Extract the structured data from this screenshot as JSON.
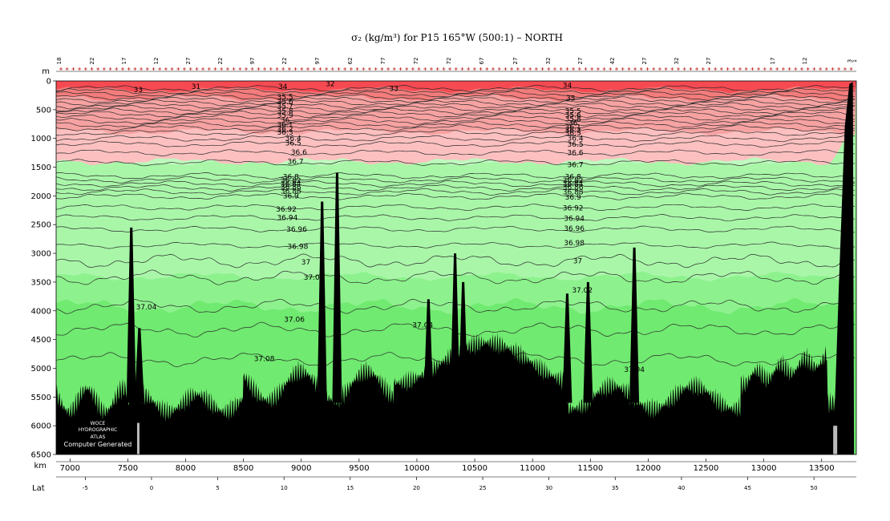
{
  "chart_data": {
    "type": "heatmap",
    "title": "σ₂ (kg/m³) for P15 165°W (500:1) – NORTH",
    "depth_axis": {
      "label": "m",
      "ticks": [
        0,
        500,
        1000,
        1500,
        2000,
        2500,
        3000,
        3500,
        4000,
        4500,
        5000,
        5500,
        6000,
        6500
      ],
      "range": [
        0,
        6500
      ],
      "inverted": true
    },
    "km_axis": {
      "label": "km",
      "ticks": [
        7000,
        7500,
        8000,
        8500,
        9000,
        9500,
        10000,
        10500,
        11000,
        11500,
        12000,
        12500,
        13000,
        13500
      ],
      "range": [
        6880,
        13800
      ]
    },
    "lat_axis": {
      "label": "Lat",
      "ticks": [
        -5,
        0,
        5,
        10,
        15,
        20,
        25,
        30,
        35,
        40,
        45,
        50
      ],
      "range": [
        -7.2,
        53.2
      ]
    },
    "station_labels": [
      "18",
      "22",
      "17",
      "12",
      "27",
      "22",
      "97",
      "22",
      "97",
      "62",
      "77",
      "72",
      "72",
      "67",
      "27",
      "32",
      "27",
      "42",
      "27",
      "32",
      "27",
      "17",
      "12",
      "3",
      "1"
    ],
    "color_bands": [
      {
        "name": "very light surface",
        "color": "#ef8080"
      },
      {
        "name": "upper red",
        "color": "#f64a52"
      },
      {
        "name": "mid red",
        "color": "#f47c7c"
      },
      {
        "name": "pink",
        "color": "#f7a2a2"
      },
      {
        "name": "light pink",
        "color": "#fcc0c0"
      },
      {
        "name": "pale green",
        "color": "#bff8bf"
      },
      {
        "name": "light green",
        "color": "#a9f6a9"
      },
      {
        "name": "green",
        "color": "#8df28d"
      },
      {
        "name": "deep green",
        "color": "#70ea70"
      },
      {
        "name": "bottom",
        "color": "#000000"
      }
    ],
    "contour_labels": [
      {
        "value": "31",
        "km": 8090,
        "depth": 100
      },
      {
        "value": "33",
        "km": 7590,
        "depth": 150
      },
      {
        "value": "34",
        "km": 8840,
        "depth": 100
      },
      {
        "value": "32",
        "km": 9250,
        "depth": 50
      },
      {
        "value": "33",
        "km": 9800,
        "depth": 130
      },
      {
        "value": "34",
        "km": 11300,
        "depth": 80
      },
      {
        "value": "35",
        "km": 11330,
        "depth": 300
      },
      {
        "value": "35.5",
        "km": 8860,
        "depth": 280
      },
      {
        "value": "35.6",
        "km": 8860,
        "depth": 360
      },
      {
        "value": "35.7",
        "km": 8860,
        "depth": 440
      },
      {
        "value": "35.8",
        "km": 8860,
        "depth": 520
      },
      {
        "value": "35.9",
        "km": 8860,
        "depth": 600
      },
      {
        "value": "36",
        "km": 8860,
        "depth": 680
      },
      {
        "value": "36.1",
        "km": 8860,
        "depth": 760
      },
      {
        "value": "36.2",
        "km": 8860,
        "depth": 840
      },
      {
        "value": "36.3",
        "km": 8860,
        "depth": 890
      },
      {
        "value": "35.5",
        "km": 11350,
        "depth": 520
      },
      {
        "value": "35.6",
        "km": 11350,
        "depth": 590
      },
      {
        "value": "35.8",
        "km": 11350,
        "depth": 660
      },
      {
        "value": "36",
        "km": 11350,
        "depth": 730
      },
      {
        "value": "36.1",
        "km": 11350,
        "depth": 800
      },
      {
        "value": "36.2",
        "km": 11350,
        "depth": 860
      },
      {
        "value": "36.3",
        "km": 11350,
        "depth": 910
      },
      {
        "value": "36.4",
        "km": 8930,
        "depth": 1000
      },
      {
        "value": "36.5",
        "km": 8930,
        "depth": 1080
      },
      {
        "value": "36.6",
        "km": 8980,
        "depth": 1240
      },
      {
        "value": "36.7",
        "km": 8950,
        "depth": 1400
      },
      {
        "value": "36.4",
        "km": 11370,
        "depth": 1000
      },
      {
        "value": "36.5",
        "km": 11370,
        "depth": 1100
      },
      {
        "value": "36.6",
        "km": 11370,
        "depth": 1250
      },
      {
        "value": "36.7",
        "km": 11370,
        "depth": 1460
      },
      {
        "value": "36.8",
        "km": 8910,
        "depth": 1670
      },
      {
        "value": "36.82",
        "km": 8910,
        "depth": 1730
      },
      {
        "value": "36.84",
        "km": 8910,
        "depth": 1790
      },
      {
        "value": "36.86",
        "km": 8910,
        "depth": 1850
      },
      {
        "value": "36.88",
        "km": 8910,
        "depth": 1920
      },
      {
        "value": "36.9",
        "km": 8910,
        "depth": 2000
      },
      {
        "value": "36.8",
        "km": 11350,
        "depth": 1670
      },
      {
        "value": "36.82",
        "km": 11350,
        "depth": 1730
      },
      {
        "value": "36.84",
        "km": 11350,
        "depth": 1790
      },
      {
        "value": "36.86",
        "km": 11350,
        "depth": 1850
      },
      {
        "value": "36.88",
        "km": 11350,
        "depth": 1930
      },
      {
        "value": "36.9",
        "km": 11350,
        "depth": 2020
      },
      {
        "value": "36.92",
        "km": 8870,
        "depth": 2230
      },
      {
        "value": "36.94",
        "km": 8880,
        "depth": 2380
      },
      {
        "value": "36.96",
        "km": 8960,
        "depth": 2580
      },
      {
        "value": "36.98",
        "km": 8970,
        "depth": 2880
      },
      {
        "value": "36.92",
        "km": 11350,
        "depth": 2210
      },
      {
        "value": "36.94",
        "km": 11360,
        "depth": 2390
      },
      {
        "value": "36.96",
        "km": 11360,
        "depth": 2570
      },
      {
        "value": "36.98",
        "km": 11360,
        "depth": 2820
      },
      {
        "value": "37",
        "km": 9040,
        "depth": 3150
      },
      {
        "value": "37.02",
        "km": 9110,
        "depth": 3420
      },
      {
        "value": "37",
        "km": 11390,
        "depth": 3130
      },
      {
        "value": "37.02",
        "km": 11430,
        "depth": 3640
      },
      {
        "value": "37.04",
        "km": 7660,
        "depth": 3930
      },
      {
        "value": "37.06",
        "km": 8940,
        "depth": 4150
      },
      {
        "value": "37.04",
        "km": 10050,
        "depth": 4250
      },
      {
        "value": "37.08",
        "km": 8680,
        "depth": 4830
      },
      {
        "value": "37.04",
        "km": 11880,
        "depth": 5020
      }
    ]
  },
  "x_axis_label": "km",
  "y_axis_label": "m",
  "lat_label": "Lat",
  "stamp": {
    "line1": "WOCE",
    "line2": "HYDROGRAPHIC",
    "line3": "ATLAS",
    "line4": "Computer Generated"
  }
}
